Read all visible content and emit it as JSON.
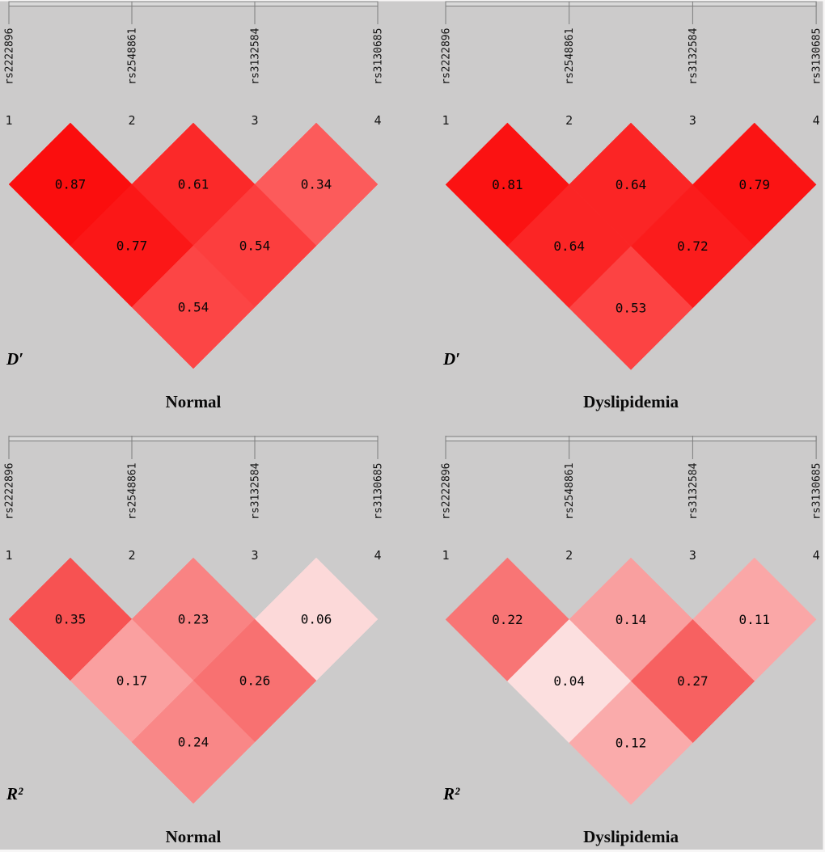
{
  "figure": {
    "background_color": "#cccbcb",
    "ruler_fill": "#d9d9d9",
    "ruler_stroke": "#7d7d7d",
    "edge_color": "#f7f6f6"
  },
  "chart_data": [
    {
      "type": "heatmap",
      "subtype": "linkage-disequilibrium-triangle",
      "measure": "D′",
      "group": "Normal",
      "position": "top-left",
      "snps": [
        "rs2222896",
        "rs2548861",
        "rs3132584",
        "rs3130685"
      ],
      "snp_indices": [
        "1",
        "2",
        "3",
        "4"
      ],
      "cells": [
        {
          "pair": [
            1,
            2
          ],
          "value": 0.87,
          "label": "0.87",
          "color": "#fb0e0e"
        },
        {
          "pair": [
            2,
            3
          ],
          "value": 0.61,
          "label": "0.61",
          "color": "#fb2929"
        },
        {
          "pair": [
            3,
            4
          ],
          "value": 0.34,
          "label": "0.34",
          "color": "#fc5b5b"
        },
        {
          "pair": [
            1,
            3
          ],
          "value": 0.77,
          "label": "0.77",
          "color": "#fb1717"
        },
        {
          "pair": [
            2,
            4
          ],
          "value": 0.54,
          "label": "0.54",
          "color": "#fc3e3e"
        },
        {
          "pair": [
            1,
            4
          ],
          "value": 0.54,
          "label": "0.54",
          "color": "#fc4545"
        }
      ]
    },
    {
      "type": "heatmap",
      "subtype": "linkage-disequilibrium-triangle",
      "measure": "D′",
      "group": "Dyslipidemia",
      "position": "top-right",
      "snps": [
        "rs2222896",
        "rs2548861",
        "rs3132584",
        "rs3130685"
      ],
      "snp_indices": [
        "1",
        "2",
        "3",
        "4"
      ],
      "cells": [
        {
          "pair": [
            1,
            2
          ],
          "value": 0.81,
          "label": "0.81",
          "color": "#fb1212"
        },
        {
          "pair": [
            2,
            3
          ],
          "value": 0.64,
          "label": "0.64",
          "color": "#fb2525"
        },
        {
          "pair": [
            3,
            4
          ],
          "value": 0.79,
          "label": "0.79",
          "color": "#fb1414"
        },
        {
          "pair": [
            1,
            3
          ],
          "value": 0.64,
          "label": "0.64",
          "color": "#fb2525"
        },
        {
          "pair": [
            2,
            4
          ],
          "value": 0.72,
          "label": "0.72",
          "color": "#fb1c1c"
        },
        {
          "pair": [
            1,
            4
          ],
          "value": 0.53,
          "label": "0.53",
          "color": "#fc4343"
        }
      ]
    },
    {
      "type": "heatmap",
      "subtype": "linkage-disequilibrium-triangle",
      "measure": "R²",
      "group": "Normal",
      "position": "bottom-left",
      "snps": [
        "rs2222896",
        "rs2548861",
        "rs3132584",
        "rs3130685"
      ],
      "snp_indices": [
        "1",
        "2",
        "3",
        "4"
      ],
      "cells": [
        {
          "pair": [
            1,
            2
          ],
          "value": 0.35,
          "label": "0.35",
          "color": "#f75252"
        },
        {
          "pair": [
            2,
            3
          ],
          "value": 0.23,
          "label": "0.23",
          "color": "#f98383"
        },
        {
          "pair": [
            3,
            4
          ],
          "value": 0.06,
          "label": "0.06",
          "color": "#fcd9d9"
        },
        {
          "pair": [
            1,
            3
          ],
          "value": 0.17,
          "label": "0.17",
          "color": "#faa0a0"
        },
        {
          "pair": [
            2,
            4
          ],
          "value": 0.26,
          "label": "0.26",
          "color": "#f87171"
        },
        {
          "pair": [
            1,
            4
          ],
          "value": 0.24,
          "label": "0.24",
          "color": "#f98787"
        }
      ]
    },
    {
      "type": "heatmap",
      "subtype": "linkage-disequilibrium-triangle",
      "measure": "R²",
      "group": "Dyslipidemia",
      "position": "bottom-right",
      "snps": [
        "rs2222896",
        "rs2548861",
        "rs3132584",
        "rs3130685"
      ],
      "snp_indices": [
        "1",
        "2",
        "3",
        "4"
      ],
      "cells": [
        {
          "pair": [
            1,
            2
          ],
          "value": 0.22,
          "label": "0.22",
          "color": "#f87575"
        },
        {
          "pair": [
            2,
            3
          ],
          "value": 0.14,
          "label": "0.14",
          "color": "#f99f9f"
        },
        {
          "pair": [
            3,
            4
          ],
          "value": 0.11,
          "label": "0.11",
          "color": "#faa7a7"
        },
        {
          "pair": [
            1,
            3
          ],
          "value": 0.04,
          "label": "0.04",
          "color": "#fcdfdf"
        },
        {
          "pair": [
            2,
            4
          ],
          "value": 0.27,
          "label": "0.27",
          "color": "#f76161"
        },
        {
          "pair": [
            1,
            4
          ],
          "value": 0.12,
          "label": "0.12",
          "color": "#faabab"
        }
      ]
    }
  ]
}
